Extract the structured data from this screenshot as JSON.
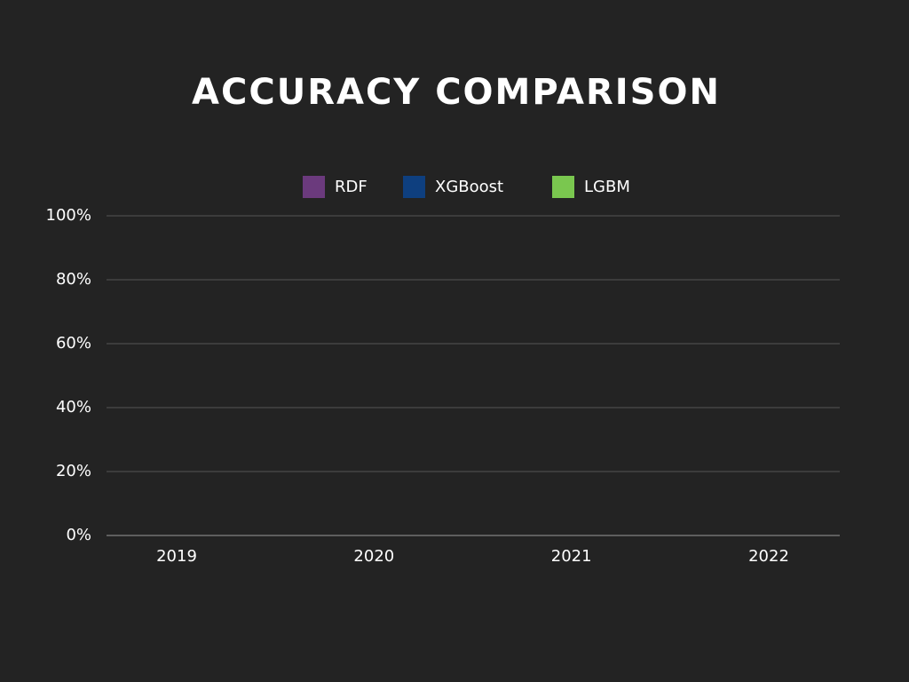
{
  "chart_data": {
    "type": "bar",
    "title": "ACCURACY COMPARISON",
    "categories": [
      "2019",
      "2020",
      "2021",
      "2022"
    ],
    "series": [
      {
        "name": "RDF",
        "color": "#6b3a7d",
        "values": [
          0,
          0,
          0,
          0
        ]
      },
      {
        "name": "XGBoost",
        "color": "#0e3f7f",
        "values": [
          0,
          0,
          0,
          0
        ]
      },
      {
        "name": "LGBM",
        "color": "#7ac74f",
        "values": [
          0,
          0,
          0,
          0
        ]
      }
    ],
    "ylim": [
      0,
      100
    ],
    "yticks": [
      {
        "value": 0,
        "label": "0%"
      },
      {
        "value": 20,
        "label": "20%"
      },
      {
        "value": 40,
        "label": "40%"
      },
      {
        "value": 60,
        "label": "60%"
      },
      {
        "value": 80,
        "label": "80%"
      },
      {
        "value": 100,
        "label": "100%"
      }
    ],
    "grid": true
  }
}
